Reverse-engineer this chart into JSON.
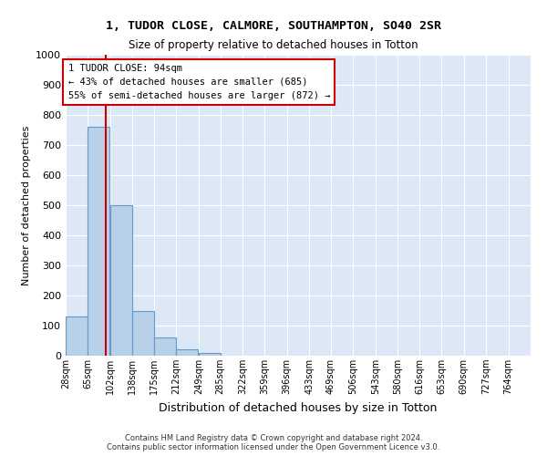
{
  "title1": "1, TUDOR CLOSE, CALMORE, SOUTHAMPTON, SO40 2SR",
  "title2": "Size of property relative to detached houses in Totton",
  "xlabel": "Distribution of detached houses by size in Totton",
  "ylabel": "Number of detached properties",
  "footnote": "Contains HM Land Registry data © Crown copyright and database right 2024.\nContains public sector information licensed under the Open Government Licence v3.0.",
  "bin_labels": [
    "28sqm",
    "65sqm",
    "102sqm",
    "138sqm",
    "175sqm",
    "212sqm",
    "249sqm",
    "285sqm",
    "322sqm",
    "359sqm",
    "396sqm",
    "433sqm",
    "469sqm",
    "506sqm",
    "543sqm",
    "580sqm",
    "616sqm",
    "653sqm",
    "690sqm",
    "727sqm",
    "764sqm"
  ],
  "bar_values": [
    130,
    760,
    500,
    150,
    60,
    20,
    10,
    0,
    0,
    0,
    0,
    0,
    0,
    0,
    0,
    0,
    0,
    0,
    0,
    0
  ],
  "bar_color": "#b8d0e8",
  "bar_edge_color": "#6699cc",
  "bg_color": "#dce8f5",
  "grid_color": "#ffffff",
  "vline_x_bin_index": 1,
  "vline_color": "#cc0000",
  "annotation_text": "1 TUDOR CLOSE: 94sqm\n← 43% of detached houses are smaller (685)\n55% of semi-detached houses are larger (872) →",
  "annotation_box_color": "#cc0000",
  "ylim": [
    0,
    1000
  ],
  "yticks": [
    0,
    100,
    200,
    300,
    400,
    500,
    600,
    700,
    800,
    900,
    1000
  ],
  "bin_edges": [
    28,
    65,
    102,
    138,
    175,
    212,
    249,
    285,
    322,
    359,
    396,
    433,
    469,
    506,
    543,
    580,
    616,
    653,
    690,
    727,
    764
  ],
  "fig_width": 6.0,
  "fig_height": 5.0,
  "fig_dpi": 100
}
